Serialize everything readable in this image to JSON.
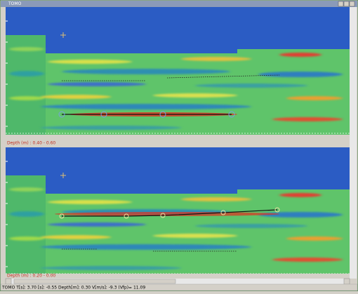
{
  "window": {
    "title": "TOMO"
  },
  "panels": [
    {
      "depth_label": "Depth (m) : 0.40 - 0.60"
    },
    {
      "depth_label": "Depth (m) : 0.20 - 0.00"
    }
  ],
  "status_bar": "TOMO   T[s]: 3.70 [s]: -0.55 Depth[m]: 0.30 V[m/s]: -9.3 (Vfp)= 11.09"
}
